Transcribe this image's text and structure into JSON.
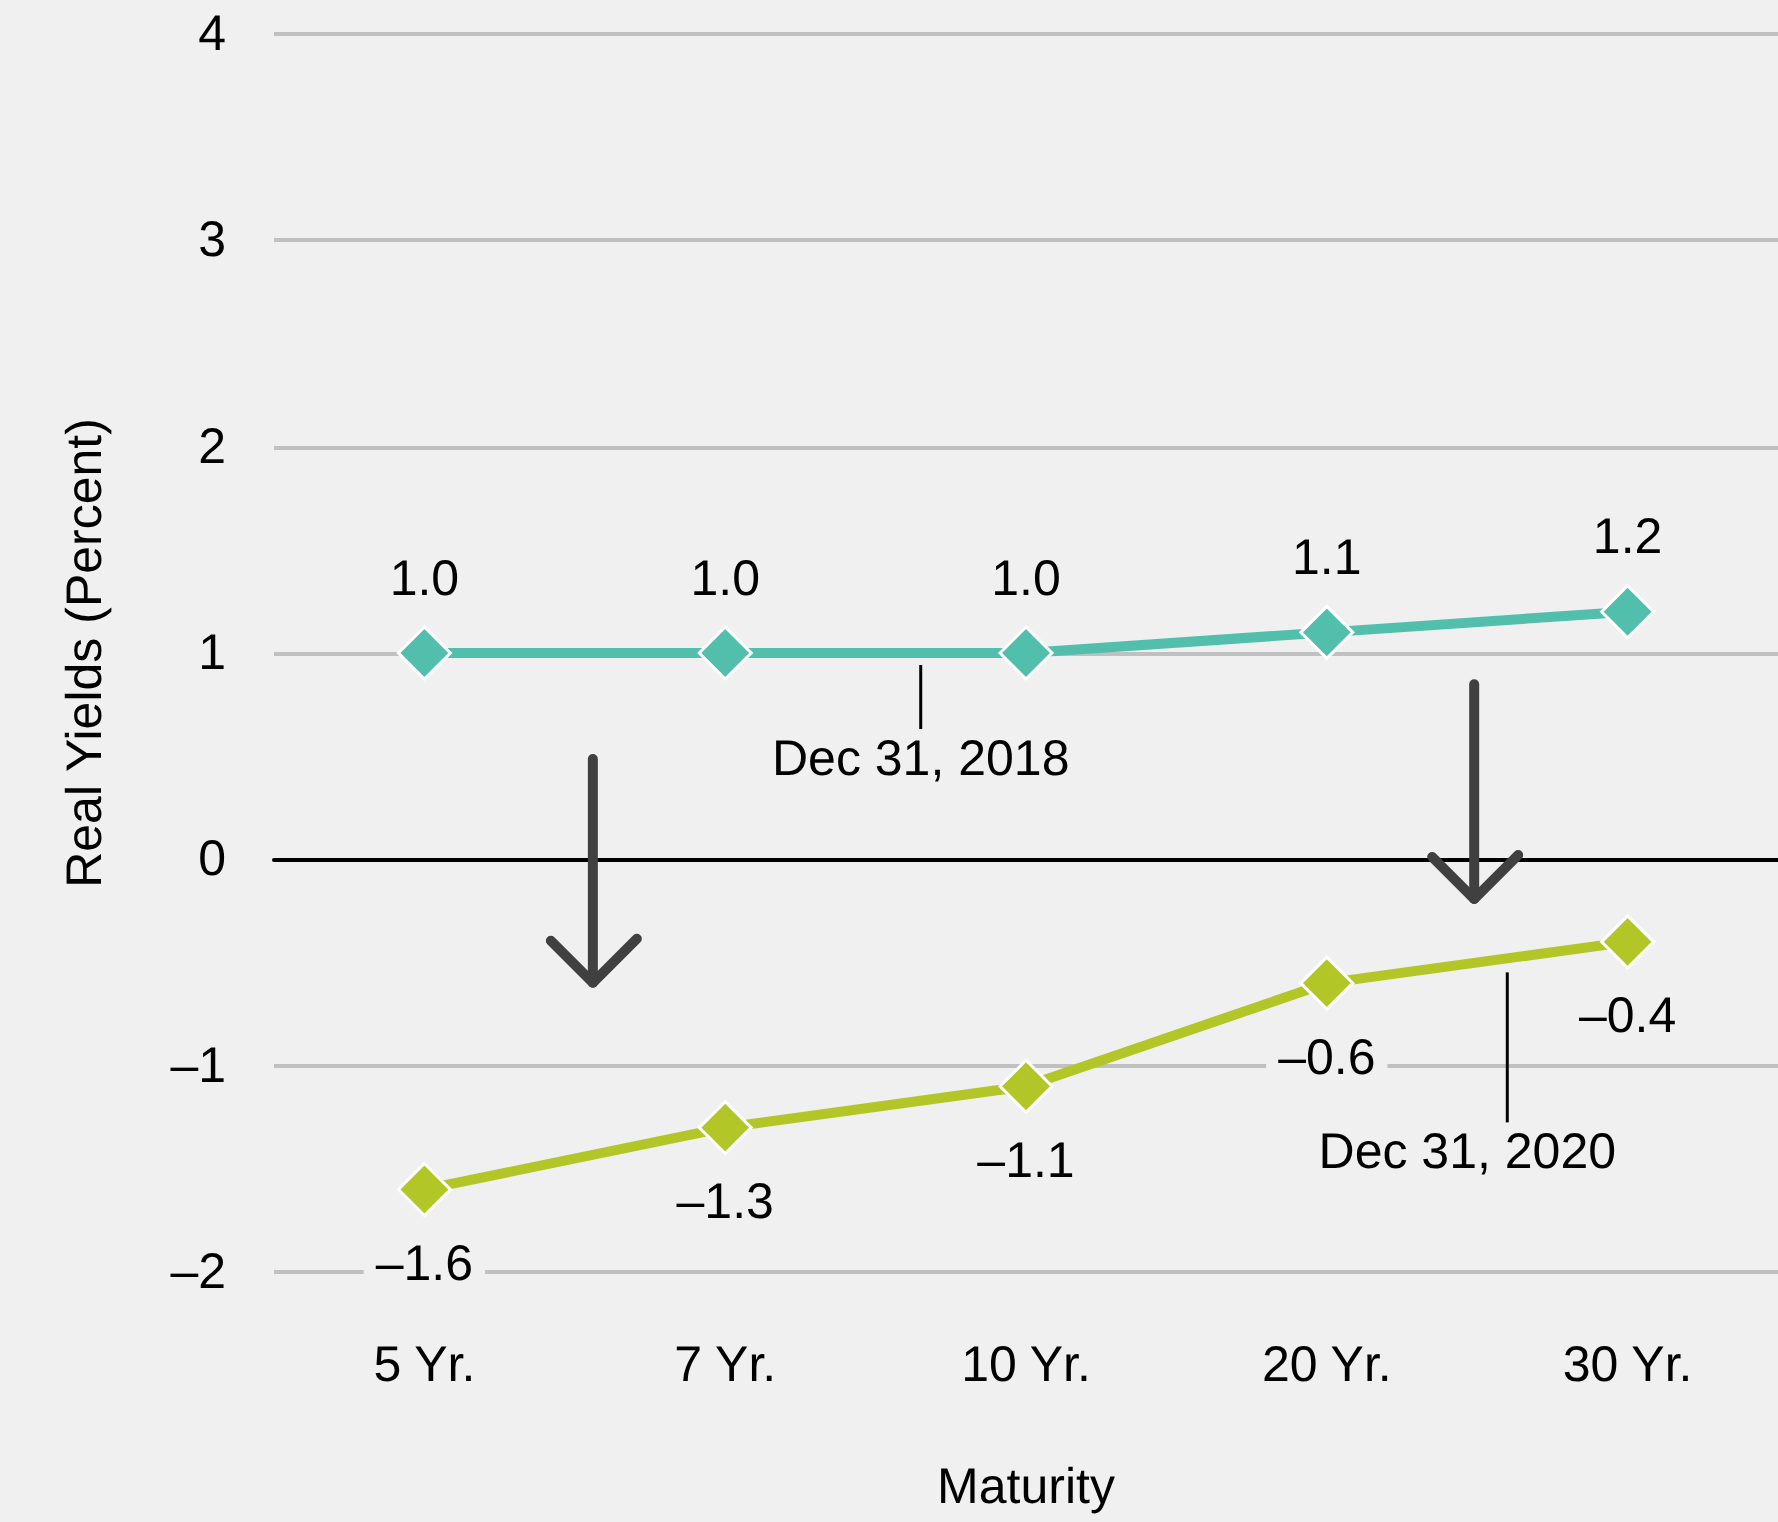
{
  "chart_data": {
    "type": "line",
    "xlabel": "Maturity",
    "ylabel": "Real Yields (Percent)",
    "categories": [
      "5 Yr.",
      "7 Yr.",
      "10 Yr.",
      "20 Yr.",
      "30 Yr."
    ],
    "series": [
      {
        "name": "Dec 31, 2018",
        "color": "#52bfad",
        "values": [
          1.0,
          1.0,
          1.0,
          1.1,
          1.2
        ],
        "value_labels": [
          "1.0",
          "1.0",
          "1.0",
          "1.1",
          "1.2"
        ]
      },
      {
        "name": "Dec 31, 2020",
        "color": "#b3c627",
        "values": [
          -1.6,
          -1.3,
          -1.1,
          -0.6,
          -0.4
        ],
        "value_labels": [
          "–1.6",
          "–1.3",
          "–1.1",
          "–0.6",
          "–0.4"
        ]
      }
    ],
    "ylim": [
      -2,
      4
    ],
    "yticks": [
      {
        "value": -2,
        "label": "–2"
      },
      {
        "value": -1,
        "label": "–1"
      },
      0,
      1,
      2,
      3,
      4
    ],
    "grid": "y",
    "legend": false,
    "marker": "diamond",
    "line_style": "solid"
  }
}
